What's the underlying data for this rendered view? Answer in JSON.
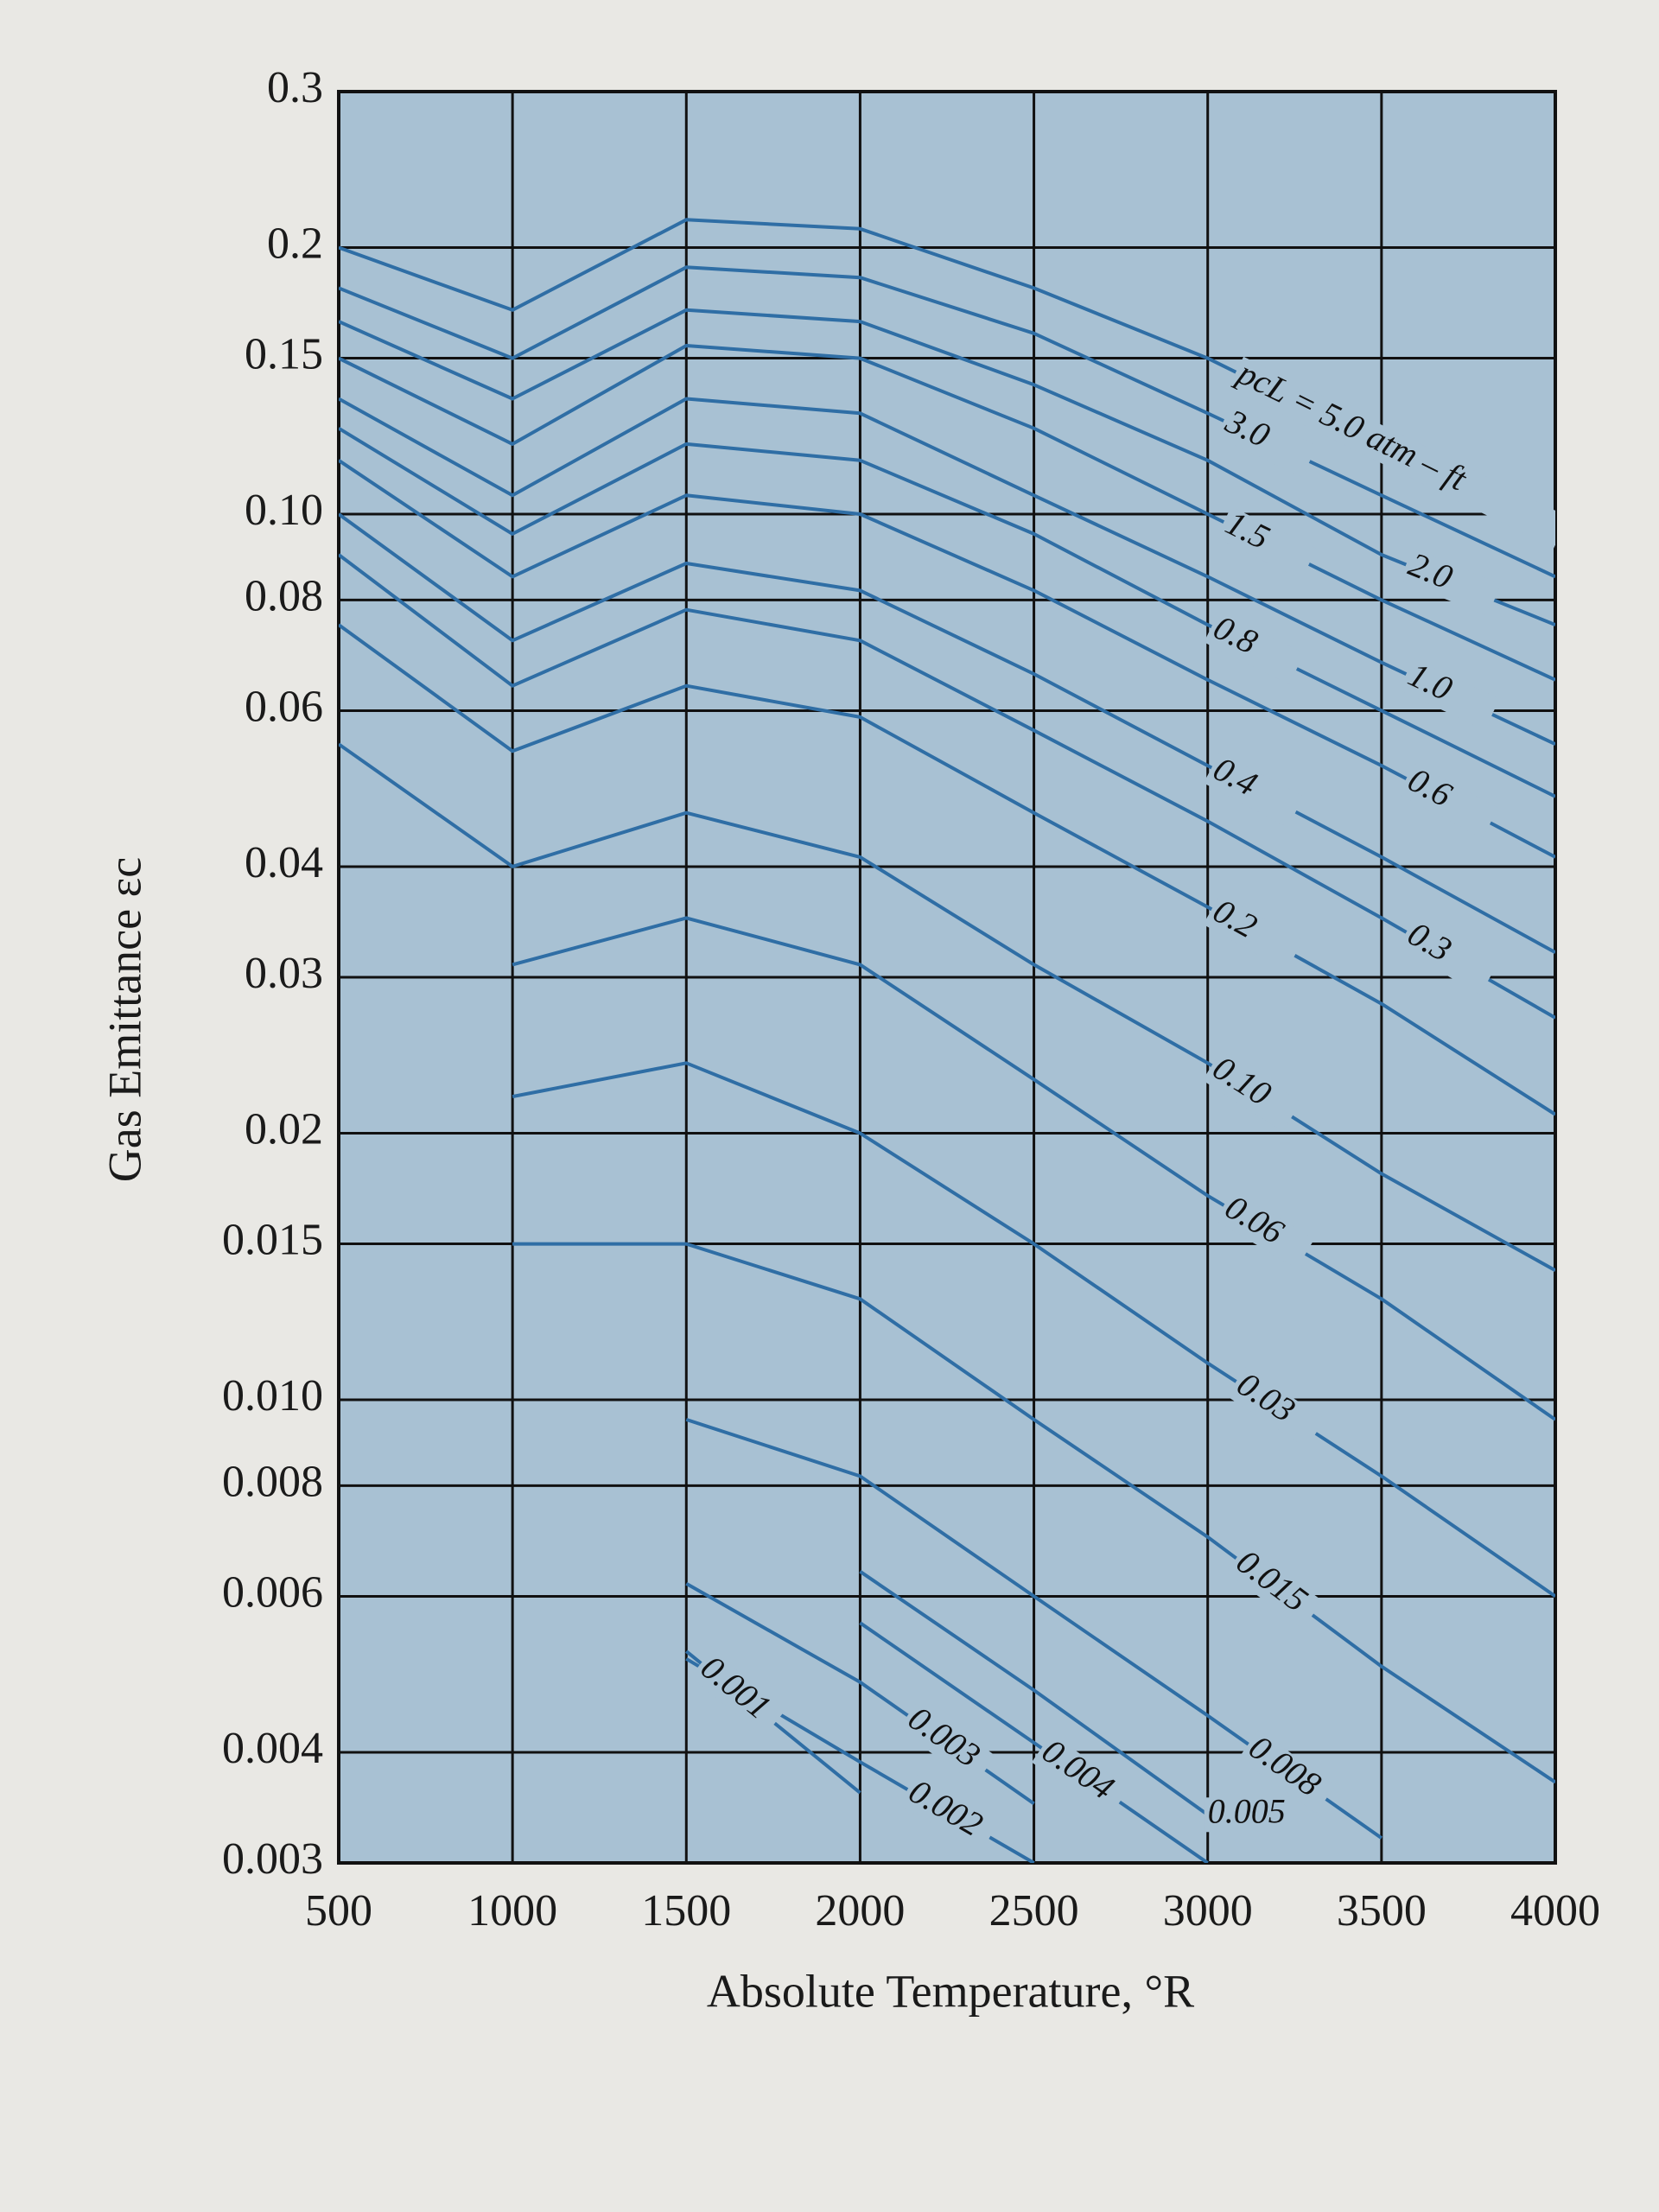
{
  "chart_data": {
    "type": "line",
    "x_label": "Absolute Temperature, °R",
    "y_label": "Gas Emittance εc",
    "x": [
      500,
      1000,
      1500,
      2000,
      2500,
      3000,
      3500,
      4000
    ],
    "xlim": [
      500,
      4000
    ],
    "xticks": [
      500,
      1000,
      1500,
      2000,
      2500,
      3000,
      3500,
      4000
    ],
    "ylim": [
      0.003,
      0.3
    ],
    "yticks": [
      0.3,
      0.2,
      0.15,
      {
        "value": 0.1,
        "label": "0.10"
      },
      0.08,
      0.06,
      0.04,
      0.03,
      0.02,
      0.015,
      {
        "value": 0.01,
        "label": "0.010"
      },
      0.008,
      0.006,
      0.004,
      0.003
    ],
    "log_y": true,
    "grid": true,
    "series": [
      {
        "name": "pcL = 5.0 atm – ft",
        "color": "#2f6ea5",
        "values": [
          0.2,
          0.17,
          0.215,
          0.21,
          0.18,
          0.15,
          0.12,
          0.1
        ]
      },
      {
        "name": "3.0",
        "color": "#2f6ea5",
        "values": [
          0.18,
          0.15,
          0.19,
          0.185,
          0.16,
          0.13,
          0.105,
          0.085
        ]
      },
      {
        "name": "2.0",
        "color": "#2f6ea5",
        "values": [
          0.165,
          0.135,
          0.17,
          0.165,
          0.14,
          0.115,
          0.09,
          0.075
        ]
      },
      {
        "name": "1.5",
        "color": "#2f6ea5",
        "values": [
          0.15,
          0.12,
          0.155,
          0.15,
          0.125,
          0.1,
          0.08,
          0.065
        ]
      },
      {
        "name": "1.0",
        "color": "#2f6ea5",
        "values": [
          0.135,
          0.105,
          0.135,
          0.13,
          0.105,
          0.085,
          0.068,
          0.055
        ]
      },
      {
        "name": "0.8",
        "color": "#2f6ea5",
        "values": [
          0.125,
          0.095,
          0.12,
          0.115,
          0.095,
          0.075,
          0.06,
          0.048
        ]
      },
      {
        "name": "0.6",
        "color": "#2f6ea5",
        "values": [
          0.115,
          0.085,
          0.105,
          0.1,
          0.082,
          0.065,
          0.052,
          0.041
        ]
      },
      {
        "name": "0.4",
        "color": "#2f6ea5",
        "values": [
          0.1,
          0.072,
          0.088,
          0.082,
          0.066,
          0.052,
          0.041,
          0.032
        ]
      },
      {
        "name": "0.3",
        "color": "#2f6ea5",
        "values": [
          0.09,
          0.064,
          0.078,
          0.072,
          0.057,
          0.045,
          0.035,
          0.027
        ]
      },
      {
        "name": "0.2",
        "color": "#2f6ea5",
        "values": [
          0.075,
          0.054,
          0.064,
          0.059,
          0.046,
          0.036,
          0.028,
          0.021
        ]
      },
      {
        "name": "0.10",
        "color": "#2f6ea5",
        "values": [
          0.055,
          0.04,
          0.046,
          0.041,
          0.031,
          0.024,
          0.018,
          0.014
        ]
      },
      {
        "name": "0.06",
        "color": "#2f6ea5",
        "values": [
          null,
          0.031,
          0.035,
          0.031,
          0.023,
          0.017,
          0.013,
          0.0095
        ]
      },
      {
        "name": "0.03",
        "color": "#2f6ea5",
        "values": [
          null,
          0.022,
          0.024,
          0.02,
          0.015,
          0.011,
          0.0082,
          0.006
        ]
      },
      {
        "name": "0.015",
        "color": "#2f6ea5",
        "values": [
          null,
          0.015,
          0.015,
          0.013,
          0.0095,
          0.007,
          0.005,
          0.0037
        ]
      },
      {
        "name": "0.008",
        "color": "#2f6ea5",
        "values": [
          null,
          null,
          0.0095,
          0.0082,
          0.006,
          0.0044,
          0.0032,
          null
        ]
      },
      {
        "name": "0.005",
        "color": "#2f6ea5",
        "values": [
          null,
          null,
          null,
          0.0064,
          0.0047,
          0.0034,
          null,
          null
        ]
      },
      {
        "name": "0.004",
        "color": "#2f6ea5",
        "values": [
          null,
          null,
          null,
          0.0056,
          0.0041,
          0.003,
          null,
          null
        ]
      },
      {
        "name": "0.003",
        "color": "#2f6ea5",
        "values": [
          null,
          null,
          0.0062,
          0.0048,
          0.0035,
          null,
          null,
          null
        ]
      },
      {
        "name": "0.002",
        "color": "#2f6ea5",
        "values": [
          null,
          null,
          0.0051,
          0.0039,
          0.003,
          null,
          null,
          null
        ]
      },
      {
        "name": "0.001",
        "color": "#2f6ea5",
        "values": [
          null,
          null,
          0.0052,
          0.0036,
          null,
          null,
          null,
          null
        ]
      }
    ]
  }
}
